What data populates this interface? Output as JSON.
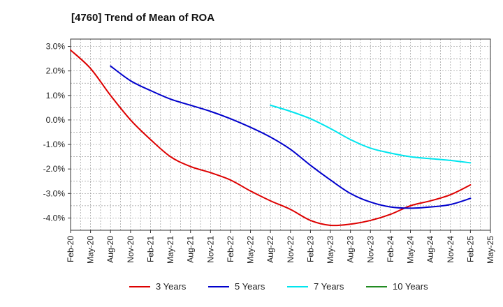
{
  "chart_data": {
    "type": "line",
    "title": "[4760]  Trend of Mean of ROA",
    "xlabel": "",
    "ylabel": "",
    "ylim": [
      -4.5,
      3.3
    ],
    "y_ticks": [
      3.0,
      2.0,
      1.0,
      0.0,
      -1.0,
      -2.0,
      -3.0,
      -4.0
    ],
    "y_tick_labels": [
      "3.0%",
      "2.0%",
      "1.0%",
      "0.0%",
      "-1.0%",
      "-2.0%",
      "-3.0%",
      "-4.0%"
    ],
    "x_tick_labels": [
      "Feb-20",
      "May-20",
      "Aug-20",
      "Nov-20",
      "Feb-21",
      "May-21",
      "Aug-21",
      "Nov-21",
      "Feb-22",
      "May-22",
      "Aug-22",
      "Nov-22",
      "Feb-23",
      "May-23",
      "Aug-23",
      "Nov-23",
      "Feb-24",
      "May-24",
      "Aug-24",
      "Nov-24",
      "Feb-25",
      "May-25"
    ],
    "grid": true,
    "legend_position": "bottom",
    "series": [
      {
        "name": "3 Years",
        "color": "#dd0000",
        "points": [
          [
            0,
            2.85
          ],
          [
            1,
            2.1
          ],
          [
            2,
            1.0
          ],
          [
            3,
            0.0
          ],
          [
            4,
            -0.8
          ],
          [
            5,
            -1.5
          ],
          [
            6,
            -1.9
          ],
          [
            7,
            -2.15
          ],
          [
            8,
            -2.45
          ],
          [
            9,
            -2.9
          ],
          [
            10,
            -3.3
          ],
          [
            11,
            -3.65
          ],
          [
            12,
            -4.1
          ],
          [
            13,
            -4.3
          ],
          [
            14,
            -4.25
          ],
          [
            15,
            -4.1
          ],
          [
            16,
            -3.85
          ],
          [
            17,
            -3.5
          ],
          [
            18,
            -3.3
          ],
          [
            19,
            -3.05
          ],
          [
            20,
            -2.65
          ]
        ]
      },
      {
        "name": "5 Years",
        "color": "#0000cc",
        "points": [
          [
            2,
            2.2
          ],
          [
            3,
            1.6
          ],
          [
            4,
            1.2
          ],
          [
            5,
            0.85
          ],
          [
            6,
            0.6
          ],
          [
            7,
            0.35
          ],
          [
            8,
            0.05
          ],
          [
            9,
            -0.3
          ],
          [
            10,
            -0.7
          ],
          [
            11,
            -1.2
          ],
          [
            12,
            -1.85
          ],
          [
            13,
            -2.45
          ],
          [
            14,
            -3.0
          ],
          [
            15,
            -3.35
          ],
          [
            16,
            -3.55
          ],
          [
            17,
            -3.6
          ],
          [
            18,
            -3.55
          ],
          [
            19,
            -3.45
          ],
          [
            20,
            -3.2
          ]
        ]
      },
      {
        "name": "7 Years",
        "color": "#00e5ee",
        "points": [
          [
            10,
            0.6
          ],
          [
            11,
            0.35
          ],
          [
            12,
            0.05
          ],
          [
            13,
            -0.35
          ],
          [
            14,
            -0.8
          ],
          [
            15,
            -1.15
          ],
          [
            16,
            -1.35
          ],
          [
            17,
            -1.5
          ],
          [
            18,
            -1.58
          ],
          [
            19,
            -1.65
          ],
          [
            20,
            -1.75
          ]
        ]
      },
      {
        "name": "10 Years",
        "color": "#228b22",
        "points": []
      }
    ]
  }
}
